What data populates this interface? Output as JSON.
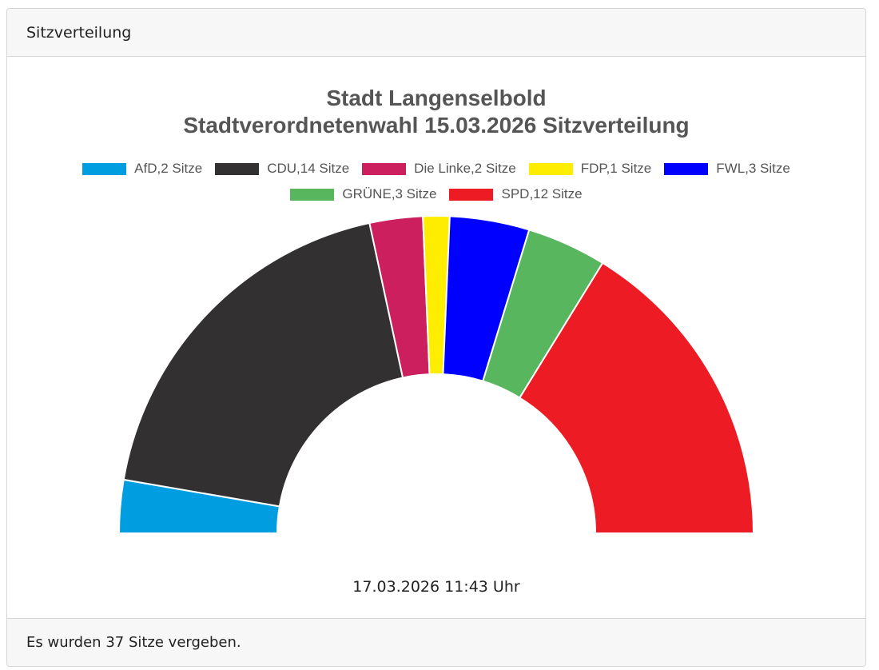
{
  "header": {
    "title": "Sitzverteilung"
  },
  "chart_data": {
    "type": "pie",
    "half": true,
    "title": "Stadt Langenselbold",
    "subtitle": "Stadtverordnetenwahl 15.03.2026 Sitzverteilung",
    "categories": [
      "AfD,2 Sitze",
      "CDU,14 Sitze",
      "Die Linke,2 Sitze",
      "FDP,1 Sitze",
      "FWL,3 Sitze",
      "GRÜNE,3 Sitze",
      "SPD,12 Sitze"
    ],
    "values": [
      2,
      14,
      2,
      1,
      3,
      3,
      12
    ],
    "colors": [
      "#009ee0",
      "#323031",
      "#cc1f5e",
      "#ffed00",
      "#0000ff",
      "#57b65e",
      "#ed1c24"
    ]
  },
  "timestamp": "17.03.2026 11:43 Uhr",
  "footer": {
    "text": "Es wurden 37 Sitze vergeben."
  }
}
